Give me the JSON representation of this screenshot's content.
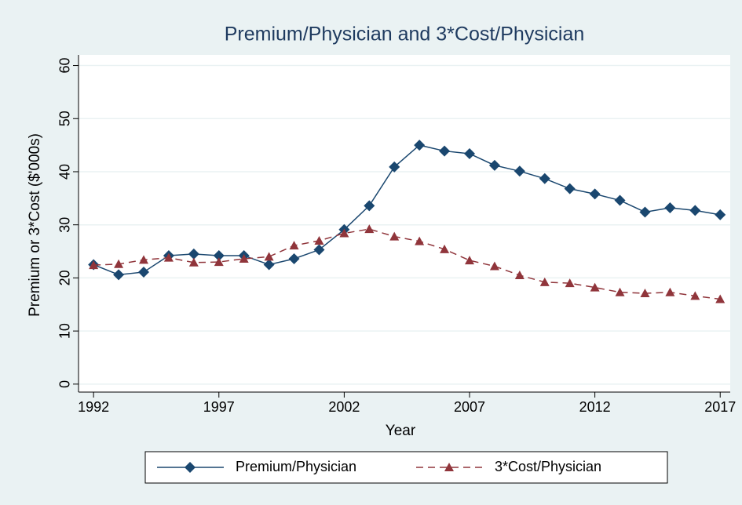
{
  "chart_data": {
    "type": "line",
    "title": "Premium/Physician and 3*Cost/Physician",
    "x_label": "Year",
    "y_label": "Premium or 3*Cost ($'000s)",
    "x": [
      1992,
      1993,
      1994,
      1995,
      1996,
      1997,
      1998,
      1999,
      2000,
      2001,
      2002,
      2003,
      2004,
      2005,
      2006,
      2007,
      2008,
      2009,
      2010,
      2011,
      2012,
      2013,
      2014,
      2015,
      2016,
      2017
    ],
    "series": [
      {
        "name": "Premium/Physician",
        "color": "#1a476f",
        "marker": "diamond",
        "dash": false,
        "values": [
          22.5,
          20.6,
          21.1,
          24.2,
          24.5,
          24.2,
          24.2,
          22.5,
          23.6,
          25.3,
          29.1,
          33.6,
          40.9,
          45.0,
          43.9,
          43.4,
          41.2,
          40.1,
          38.7,
          36.8,
          35.8,
          34.6,
          32.4,
          33.2,
          32.7,
          31.9
        ]
      },
      {
        "name": "3*Cost/Physician",
        "color": "#90353b",
        "marker": "triangle",
        "dash": true,
        "values": [
          22.4,
          22.6,
          23.4,
          23.8,
          22.9,
          23.0,
          23.6,
          24.0,
          26.1,
          27.0,
          28.4,
          29.2,
          27.8,
          26.9,
          25.4,
          23.3,
          22.2,
          20.5,
          19.2,
          19.0,
          18.2,
          17.3,
          17.1,
          17.3,
          16.6,
          16.0
        ]
      }
    ],
    "xlim": [
      1991.4,
      2017.4
    ],
    "xticks": [
      1992,
      1997,
      2002,
      2007,
      2012,
      2017
    ],
    "ylim": [
      -1.5,
      62
    ],
    "yticks": [
      0,
      10,
      20,
      30,
      40,
      50,
      60
    ],
    "grid": true,
    "legend": "bottom"
  }
}
